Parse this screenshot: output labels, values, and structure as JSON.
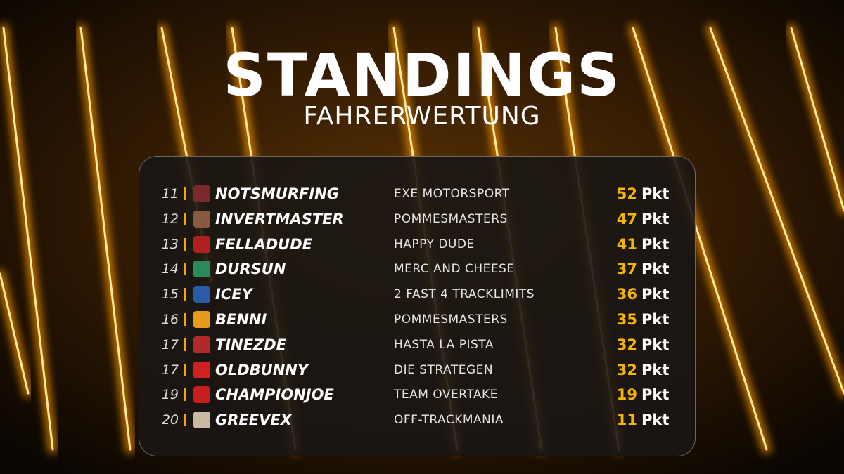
{
  "header": {
    "title": "STANDINGS",
    "subtitle": "FAHRERWERTUNG"
  },
  "table": {
    "points_unit": "Pkt",
    "rows": [
      {
        "position": 11,
        "driver": "NOTSMURFING",
        "team": "EXE MOTORSPORT",
        "points": 52
      },
      {
        "position": 12,
        "driver": "INVERTMASTER",
        "team": "POMMESMASTERS",
        "points": 47
      },
      {
        "position": 13,
        "driver": "FELLADUDE",
        "team": "HAPPY DUDE",
        "points": 41
      },
      {
        "position": 14,
        "driver": "DURSUN",
        "team": "MERC AND CHEESE",
        "points": 37
      },
      {
        "position": 15,
        "driver": "ICEY",
        "team": "2 FAST 4 TRACKLIMITS",
        "points": 36
      },
      {
        "position": 16,
        "driver": "BENNI",
        "team": "POMMESMASTERS",
        "points": 35
      },
      {
        "position": 17,
        "driver": "TINEZDE",
        "team": "HASTA LA PISTA",
        "points": 32
      },
      {
        "position": 17,
        "driver": "OLDBUNNY",
        "team": "DIE STRATEGEN",
        "points": 32
      },
      {
        "position": 19,
        "driver": "CHAMPIONJOE",
        "team": "TEAM OVERTAKE",
        "points": 19
      },
      {
        "position": 20,
        "driver": "GREEVEX",
        "team": "OFF-TRACKMANIA",
        "points": 11
      }
    ]
  }
}
